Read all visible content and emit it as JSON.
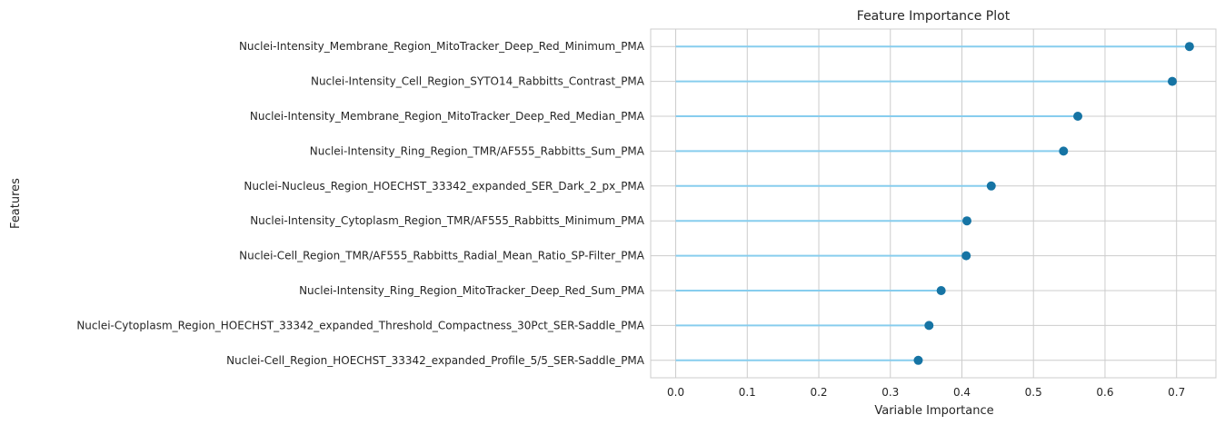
{
  "chart_data": {
    "type": "lollipop",
    "title": "Feature Importance Plot",
    "xlabel": "Variable Importance",
    "ylabel": "Features",
    "xlim": [
      -0.035,
      0.755
    ],
    "xticks": [
      0.0,
      0.1,
      0.2,
      0.3,
      0.4,
      0.5,
      0.6,
      0.7
    ],
    "xtick_labels": [
      "0.0",
      "0.1",
      "0.2",
      "0.3",
      "0.4",
      "0.5",
      "0.6",
      "0.7"
    ],
    "grid": true,
    "colors": {
      "stem": "#87cdee",
      "marker": "#1674a4",
      "grid": "#cccccc"
    },
    "categories": [
      "Nuclei-Intensity_Membrane_Region_MitoTracker_Deep_Red_Minimum_PMA",
      "Nuclei-Intensity_Cell_Region_SYTO14_Rabbitts_Contrast_PMA",
      "Nuclei-Intensity_Membrane_Region_MitoTracker_Deep_Red_Median_PMA",
      "Nuclei-Intensity_Ring_Region_TMR/AF555_Rabbitts_Sum_PMA",
      "Nuclei-Nucleus_Region_HOECHST_33342_expanded_SER_Dark_2_px_PMA",
      "Nuclei-Intensity_Cytoplasm_Region_TMR/AF555_Rabbitts_Minimum_PMA",
      "Nuclei-Cell_Region_TMR/AF555_Rabbitts_Radial_Mean_Ratio_SP-Filter_PMA",
      "Nuclei-Intensity_Ring_Region_MitoTracker_Deep_Red_Sum_PMA",
      "Nuclei-Cytoplasm_Region_HOECHST_33342_expanded_Threshold_Compactness_30Pct_SER-Saddle_PMA",
      "Nuclei-Cell_Region_HOECHST_33342_expanded_Profile_5/5_SER-Saddle_PMA"
    ],
    "values": [
      0.718,
      0.694,
      0.562,
      0.542,
      0.441,
      0.407,
      0.406,
      0.371,
      0.354,
      0.339
    ]
  }
}
